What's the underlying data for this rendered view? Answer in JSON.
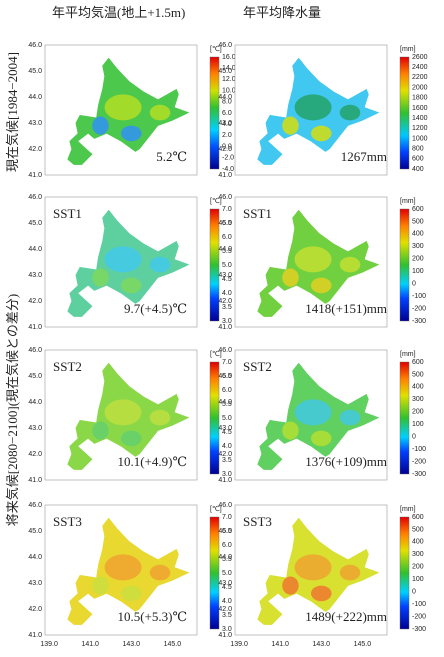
{
  "headers": [
    "年平均気温(地上+1.5m)",
    "年平均降水量"
  ],
  "row_labels": [
    "現在気候[1984−2004]",
    "将来気候[2080−2100](現在気候との差分)"
  ],
  "y_ticks": [
    "46.0",
    "45.0",
    "44.0",
    "43.0",
    "42.0",
    "41.0"
  ],
  "x_ticks": [
    "139.0",
    "141.0",
    "143.0",
    "145.0"
  ],
  "panels": [
    {
      "annotation": "5.2℃",
      "unit": "[℃]",
      "colorbar_ticks": [
        "16.0",
        "14.0",
        "12.0",
        "10.0",
        "8.0",
        "6.0",
        "4.0",
        "2.0",
        "0.0",
        "-2.0",
        "-4.0"
      ]
    },
    {
      "annotation": "1267mm",
      "unit": "[mm]",
      "colorbar_ticks": [
        "2600",
        "2400",
        "2200",
        "2000",
        "1800",
        "1600",
        "1400",
        "1200",
        "1000",
        "800",
        "600",
        "400"
      ]
    },
    {
      "label": "SST1",
      "annotation": "9.7(+4.5)℃",
      "unit": "[℃]",
      "colorbar_ticks": [
        "7.0",
        "6.5",
        "6.0",
        "5.5",
        "5.0",
        "4.5",
        "4.0",
        "3.5",
        "3.0"
      ]
    },
    {
      "label": "SST1",
      "annotation": "1418(+151)mm",
      "unit": "[mm]",
      "colorbar_ticks": [
        "600",
        "500",
        "400",
        "300",
        "200",
        "100",
        "0",
        "-100",
        "-200",
        "-300"
      ]
    },
    {
      "label": "SST2",
      "annotation": "10.1(+4.9)℃",
      "unit": "[℃]",
      "colorbar_ticks": [
        "7.0",
        "6.5",
        "6.0",
        "5.5",
        "5.0",
        "4.5",
        "4.0",
        "3.5",
        "3.0"
      ]
    },
    {
      "label": "SST2",
      "annotation": "1376(+109)mm",
      "unit": "[mm]",
      "colorbar_ticks": [
        "600",
        "500",
        "400",
        "300",
        "200",
        "100",
        "0",
        "-100",
        "-200",
        "-300"
      ]
    },
    {
      "label": "SST3",
      "annotation": "10.5(+5.3)℃",
      "unit": "[℃]",
      "colorbar_ticks": [
        "7.0",
        "6.5",
        "6.0",
        "5.5",
        "5.0",
        "4.5",
        "4.0",
        "3.5",
        "3.0"
      ]
    },
    {
      "label": "SST3",
      "annotation": "1489(+222)mm",
      "unit": "[mm]",
      "colorbar_ticks": [
        "600",
        "500",
        "400",
        "300",
        "200",
        "100",
        "0",
        "-100",
        "-200",
        "-300"
      ]
    }
  ]
}
